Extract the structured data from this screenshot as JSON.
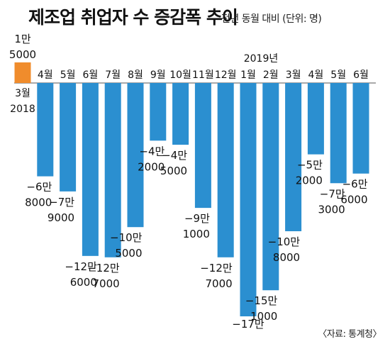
{
  "header": {
    "title": "제조업 취업자 수 증감폭 추이",
    "subtitle": "전년 동월 대비 (단위: 명)"
  },
  "footer": {
    "source": "〈자료: 통계청〉"
  },
  "chart_data": {
    "type": "bar",
    "title": "제조업 취업자 수 증감폭 추이",
    "subtitle": "전년 동월 대비 (단위: 명)",
    "xlabel": "",
    "ylabel": "",
    "year_markers": [
      {
        "label": "2018",
        "at_index": 0
      },
      {
        "label": "2019년",
        "at_index": 10
      }
    ],
    "categories": [
      "3월",
      "4월",
      "5월",
      "6월",
      "7월",
      "8월",
      "9월",
      "10월",
      "11월",
      "12월",
      "1월",
      "2월",
      "3월",
      "4월",
      "5월",
      "6월"
    ],
    "values": [
      15000,
      -68000,
      -79000,
      -126000,
      -127000,
      -105000,
      -42000,
      -45000,
      -91000,
      -127000,
      -170000,
      -151000,
      -108000,
      -52000,
      -73000,
      -66000
    ],
    "value_labels": [
      [
        "1만",
        "5000"
      ],
      [
        "−6만",
        "8000"
      ],
      [
        "−7만",
        "9000"
      ],
      [
        "−12만",
        "6000"
      ],
      [
        "−12만",
        "7000"
      ],
      [
        "−10만",
        "5000"
      ],
      [
        "−4만",
        "2000"
      ],
      [
        "−4만",
        "5000"
      ],
      [
        "−9만",
        "1000"
      ],
      [
        "−12만",
        "7000"
      ],
      [
        "−17만",
        ""
      ],
      [
        "−15만",
        "1000"
      ],
      [
        "−10만",
        "8000"
      ],
      [
        "−5만",
        "2000"
      ],
      [
        "−7만",
        "3000"
      ],
      [
        "−6만",
        "6000"
      ]
    ],
    "colors": {
      "positive": "#f08c2c",
      "negative": "#2b8fd0",
      "axis": "#555555"
    },
    "ylim": [
      -170000,
      15000
    ],
    "grid": false,
    "legend": "none"
  }
}
